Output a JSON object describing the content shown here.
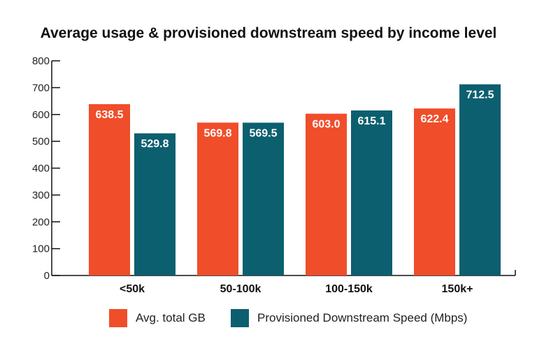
{
  "chart_data": {
    "type": "bar",
    "title": "Average usage & provisioned downstream speed by income level",
    "xlabel": "",
    "ylabel": "",
    "categories": [
      "<50k",
      "50-100k",
      "100-150k",
      "150k+"
    ],
    "series": [
      {
        "name": "Avg. total GB",
        "color": "#f04e2a",
        "values": [
          638.5,
          569.8,
          603.0,
          622.4
        ]
      },
      {
        "name": "Provisioned Downstream Speed (Mbps)",
        "color": "#0b5f6e",
        "values": [
          529.8,
          569.5,
          615.1,
          712.5
        ]
      }
    ],
    "ylim": [
      0,
      800
    ],
    "yticks": [
      0,
      100,
      200,
      300,
      400,
      500,
      600,
      700,
      800
    ],
    "grid": false,
    "legend_position": "bottom"
  }
}
